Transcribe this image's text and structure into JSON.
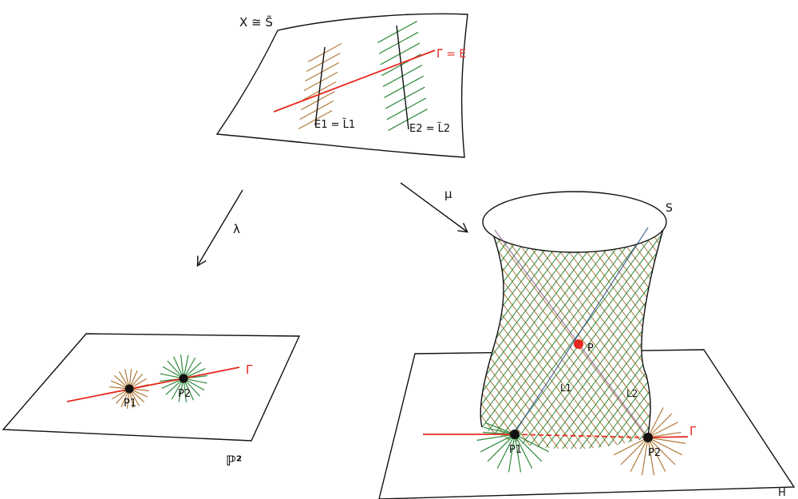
{
  "labels": {
    "blowup_space": "X ≅ S̃",
    "strict_transform": "Γ̃ = E",
    "exceptional_1": "E1 = L̃1",
    "exceptional_2": "E2 = L̃2",
    "lambda_map": "λ",
    "mu_map": "μ",
    "surface": "S",
    "projective_plane": "ℙ²",
    "plane_h": "H",
    "gamma_left": "Γ",
    "gamma_right": "Γ",
    "p1_left": "P1",
    "p2_left": "P2",
    "p1_right": "P1",
    "p2_right": "P2",
    "point_p": "P",
    "line_l1": "L1",
    "line_l2": "L2"
  },
  "colors": {
    "red": "#e8281e",
    "brown": "#b07a3a",
    "green": "#2f8a3c",
    "ink": "#111111"
  }
}
